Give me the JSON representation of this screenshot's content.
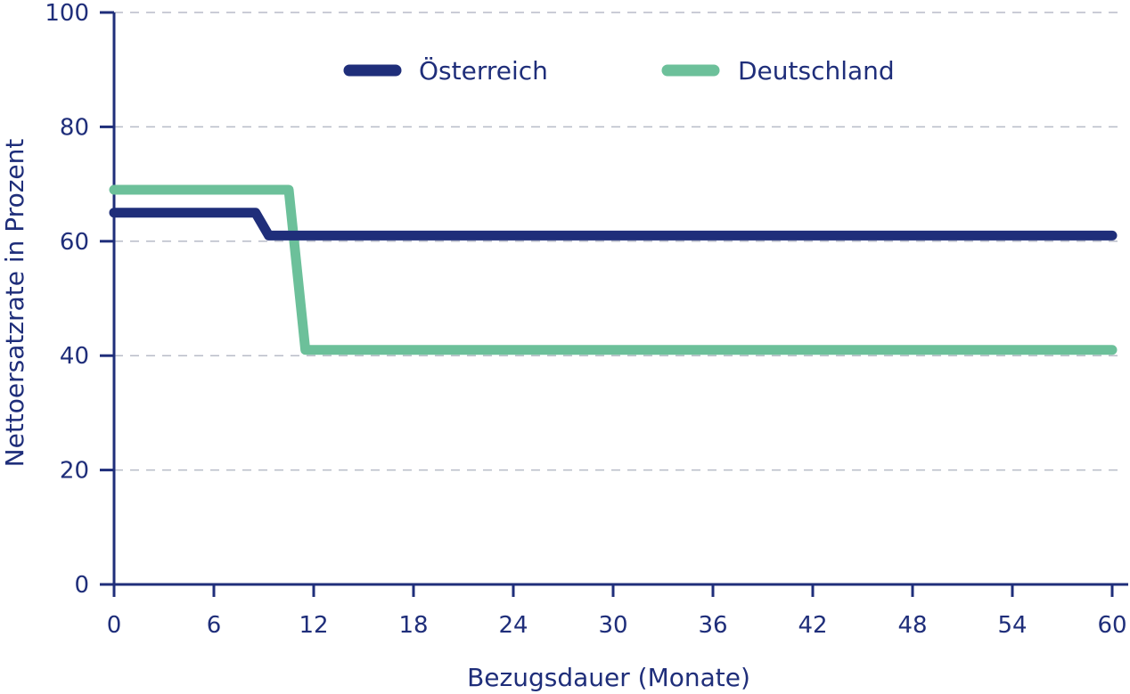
{
  "chart_data": {
    "type": "line",
    "title": "",
    "xlabel": "Bezugsdauer (Monate)",
    "ylabel": "Nettoersatzrate in Prozent",
    "xlim": [
      0,
      60
    ],
    "ylim": [
      0,
      100
    ],
    "xticks": [
      "0",
      "6",
      "12",
      "18",
      "24",
      "30",
      "36",
      "42",
      "48",
      "54",
      "60"
    ],
    "yticks": [
      "0",
      "20",
      "40",
      "60",
      "80",
      "100"
    ],
    "grid": "horizontal dashed",
    "legend_position": "top",
    "series": [
      {
        "name": "Österreich",
        "color": "#1f2e7a",
        "x": [
          0,
          8.5,
          9.3,
          60
        ],
        "y": [
          65,
          65,
          61,
          61
        ]
      },
      {
        "name": "Deutschland",
        "color": "#6cc09a",
        "x": [
          0,
          10.5,
          11.5,
          60
        ],
        "y": [
          69,
          69,
          41,
          41
        ]
      }
    ]
  }
}
